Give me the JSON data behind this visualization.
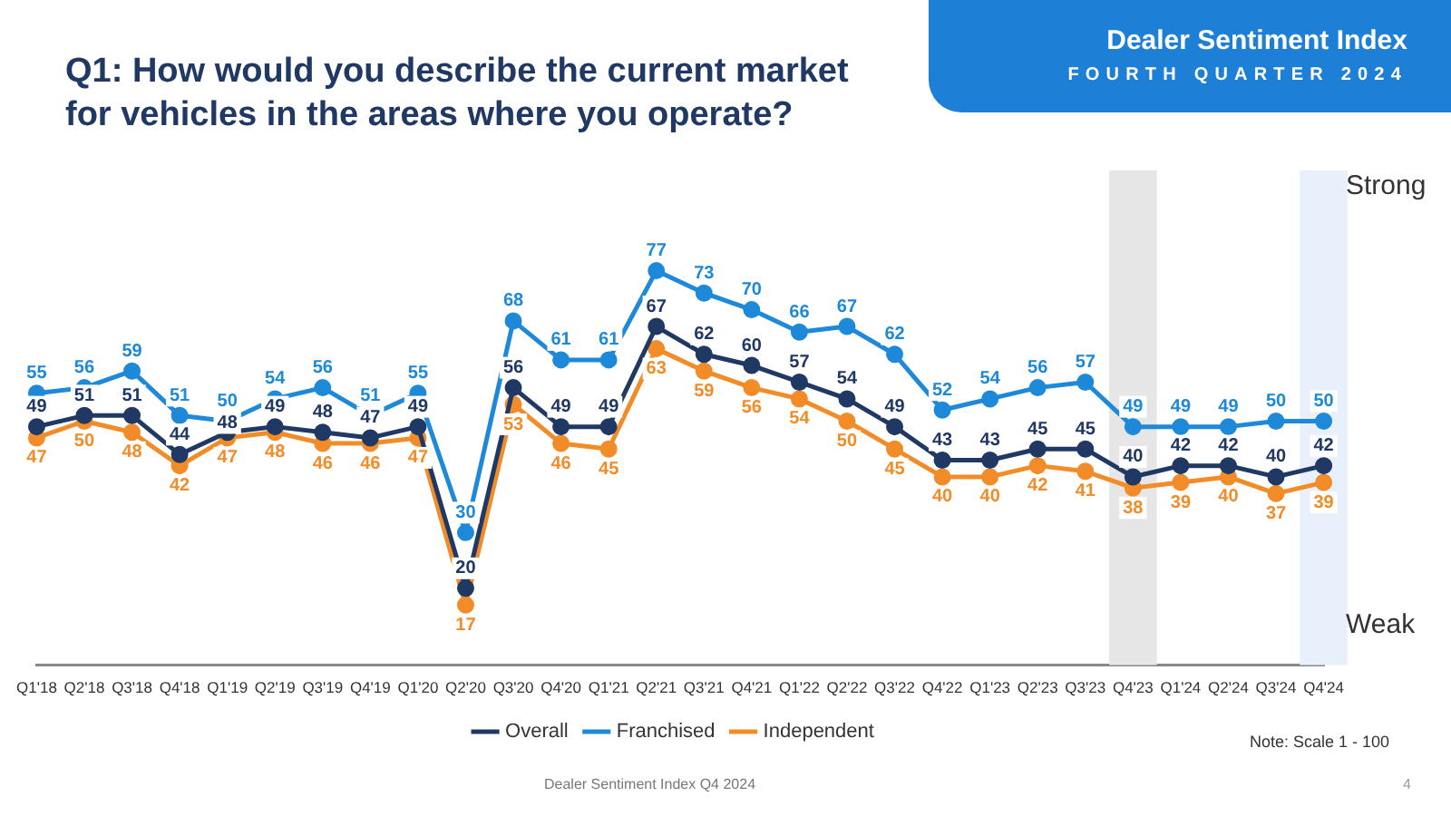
{
  "chart_data": {
    "type": "line",
    "title": "Q1: How would you describe the current market for vehicles in the areas where you operate?",
    "categories": [
      "Q1'18",
      "Q2'18",
      "Q3'18",
      "Q4'18",
      "Q1'19",
      "Q2'19",
      "Q3'19",
      "Q4'19",
      "Q1'20",
      "Q2'20",
      "Q3'20",
      "Q4'20",
      "Q1'21",
      "Q2'21",
      "Q3'21",
      "Q4'21",
      "Q1'22",
      "Q2'22",
      "Q3'22",
      "Q4'22",
      "Q1'23",
      "Q2'23",
      "Q3'23",
      "Q4'23",
      "Q1'24",
      "Q2'24",
      "Q3'24",
      "Q4'24"
    ],
    "series": [
      {
        "name": "Overall",
        "color": "#1f3864",
        "values": [
          49,
          51,
          51,
          44,
          48,
          49,
          48,
          47,
          49,
          20,
          56,
          49,
          49,
          67,
          62,
          60,
          57,
          54,
          49,
          43,
          43,
          45,
          45,
          40,
          42,
          42,
          40,
          42
        ]
      },
      {
        "name": "Franchised",
        "color": "#1e88d9",
        "values": [
          55,
          56,
          59,
          51,
          50,
          54,
          56,
          51,
          55,
          30,
          68,
          61,
          61,
          77,
          73,
          70,
          66,
          67,
          62,
          52,
          54,
          56,
          57,
          49,
          49,
          49,
          50,
          50
        ]
      },
      {
        "name": "Independent",
        "color": "#f28c28",
        "values": [
          47,
          50,
          48,
          42,
          47,
          48,
          46,
          46,
          47,
          17,
          53,
          46,
          45,
          63,
          59,
          56,
          54,
          50,
          45,
          40,
          40,
          42,
          41,
          38,
          39,
          40,
          37,
          39
        ]
      }
    ],
    "bands": [
      {
        "axis": "x",
        "from": "Q4'23",
        "to": "Q4'23",
        "color": "#e6e6e6"
      },
      {
        "axis": "x",
        "from": "Q4'24",
        "to": "Q4'24",
        "color": "#e8f0fb"
      }
    ],
    "annotations": [
      "Dealer Sentiment Index",
      "FOURTH QUARTER 2024",
      "Strong",
      "Weak",
      "Note: Scale 1 - 100",
      "Dealer Sentiment Index Q4 2024",
      "4"
    ],
    "data_labels": true,
    "grid": false,
    "legend": "bottom",
    "marker": "circle",
    "line_style": "solid"
  }
}
